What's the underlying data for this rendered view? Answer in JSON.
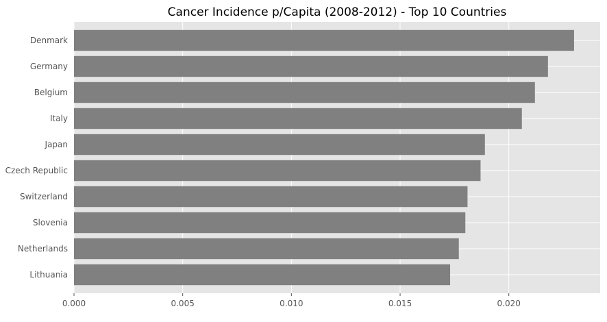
{
  "chart_data": {
    "type": "bar",
    "orientation": "horizontal",
    "title": "Cancer Incidence p/Capita (2008-2012) - Top 10 Countries",
    "xlabel": "",
    "ylabel": "",
    "categories": [
      "Denmark",
      "Germany",
      "Belgium",
      "Italy",
      "Japan",
      "Czech Republic",
      "Switzerland",
      "Slovenia",
      "Netherlands",
      "Lithuania"
    ],
    "values": [
      0.023,
      0.0218,
      0.0212,
      0.0206,
      0.0189,
      0.0187,
      0.0181,
      0.018,
      0.0177,
      0.0173
    ],
    "xlim": [
      0,
      0.0242
    ],
    "xticks": [
      0,
      0.005,
      0.01,
      0.015,
      0.02
    ],
    "xtick_labels": [
      "0.000",
      "0.005",
      "0.010",
      "0.015",
      "0.020"
    ],
    "grid": true,
    "style": "ggplot",
    "colors": {
      "bar": "#808080",
      "plot_background": "#e5e5e5",
      "grid": "#ffffff",
      "tick_text": "#555555",
      "title_text": "#000000"
    }
  }
}
